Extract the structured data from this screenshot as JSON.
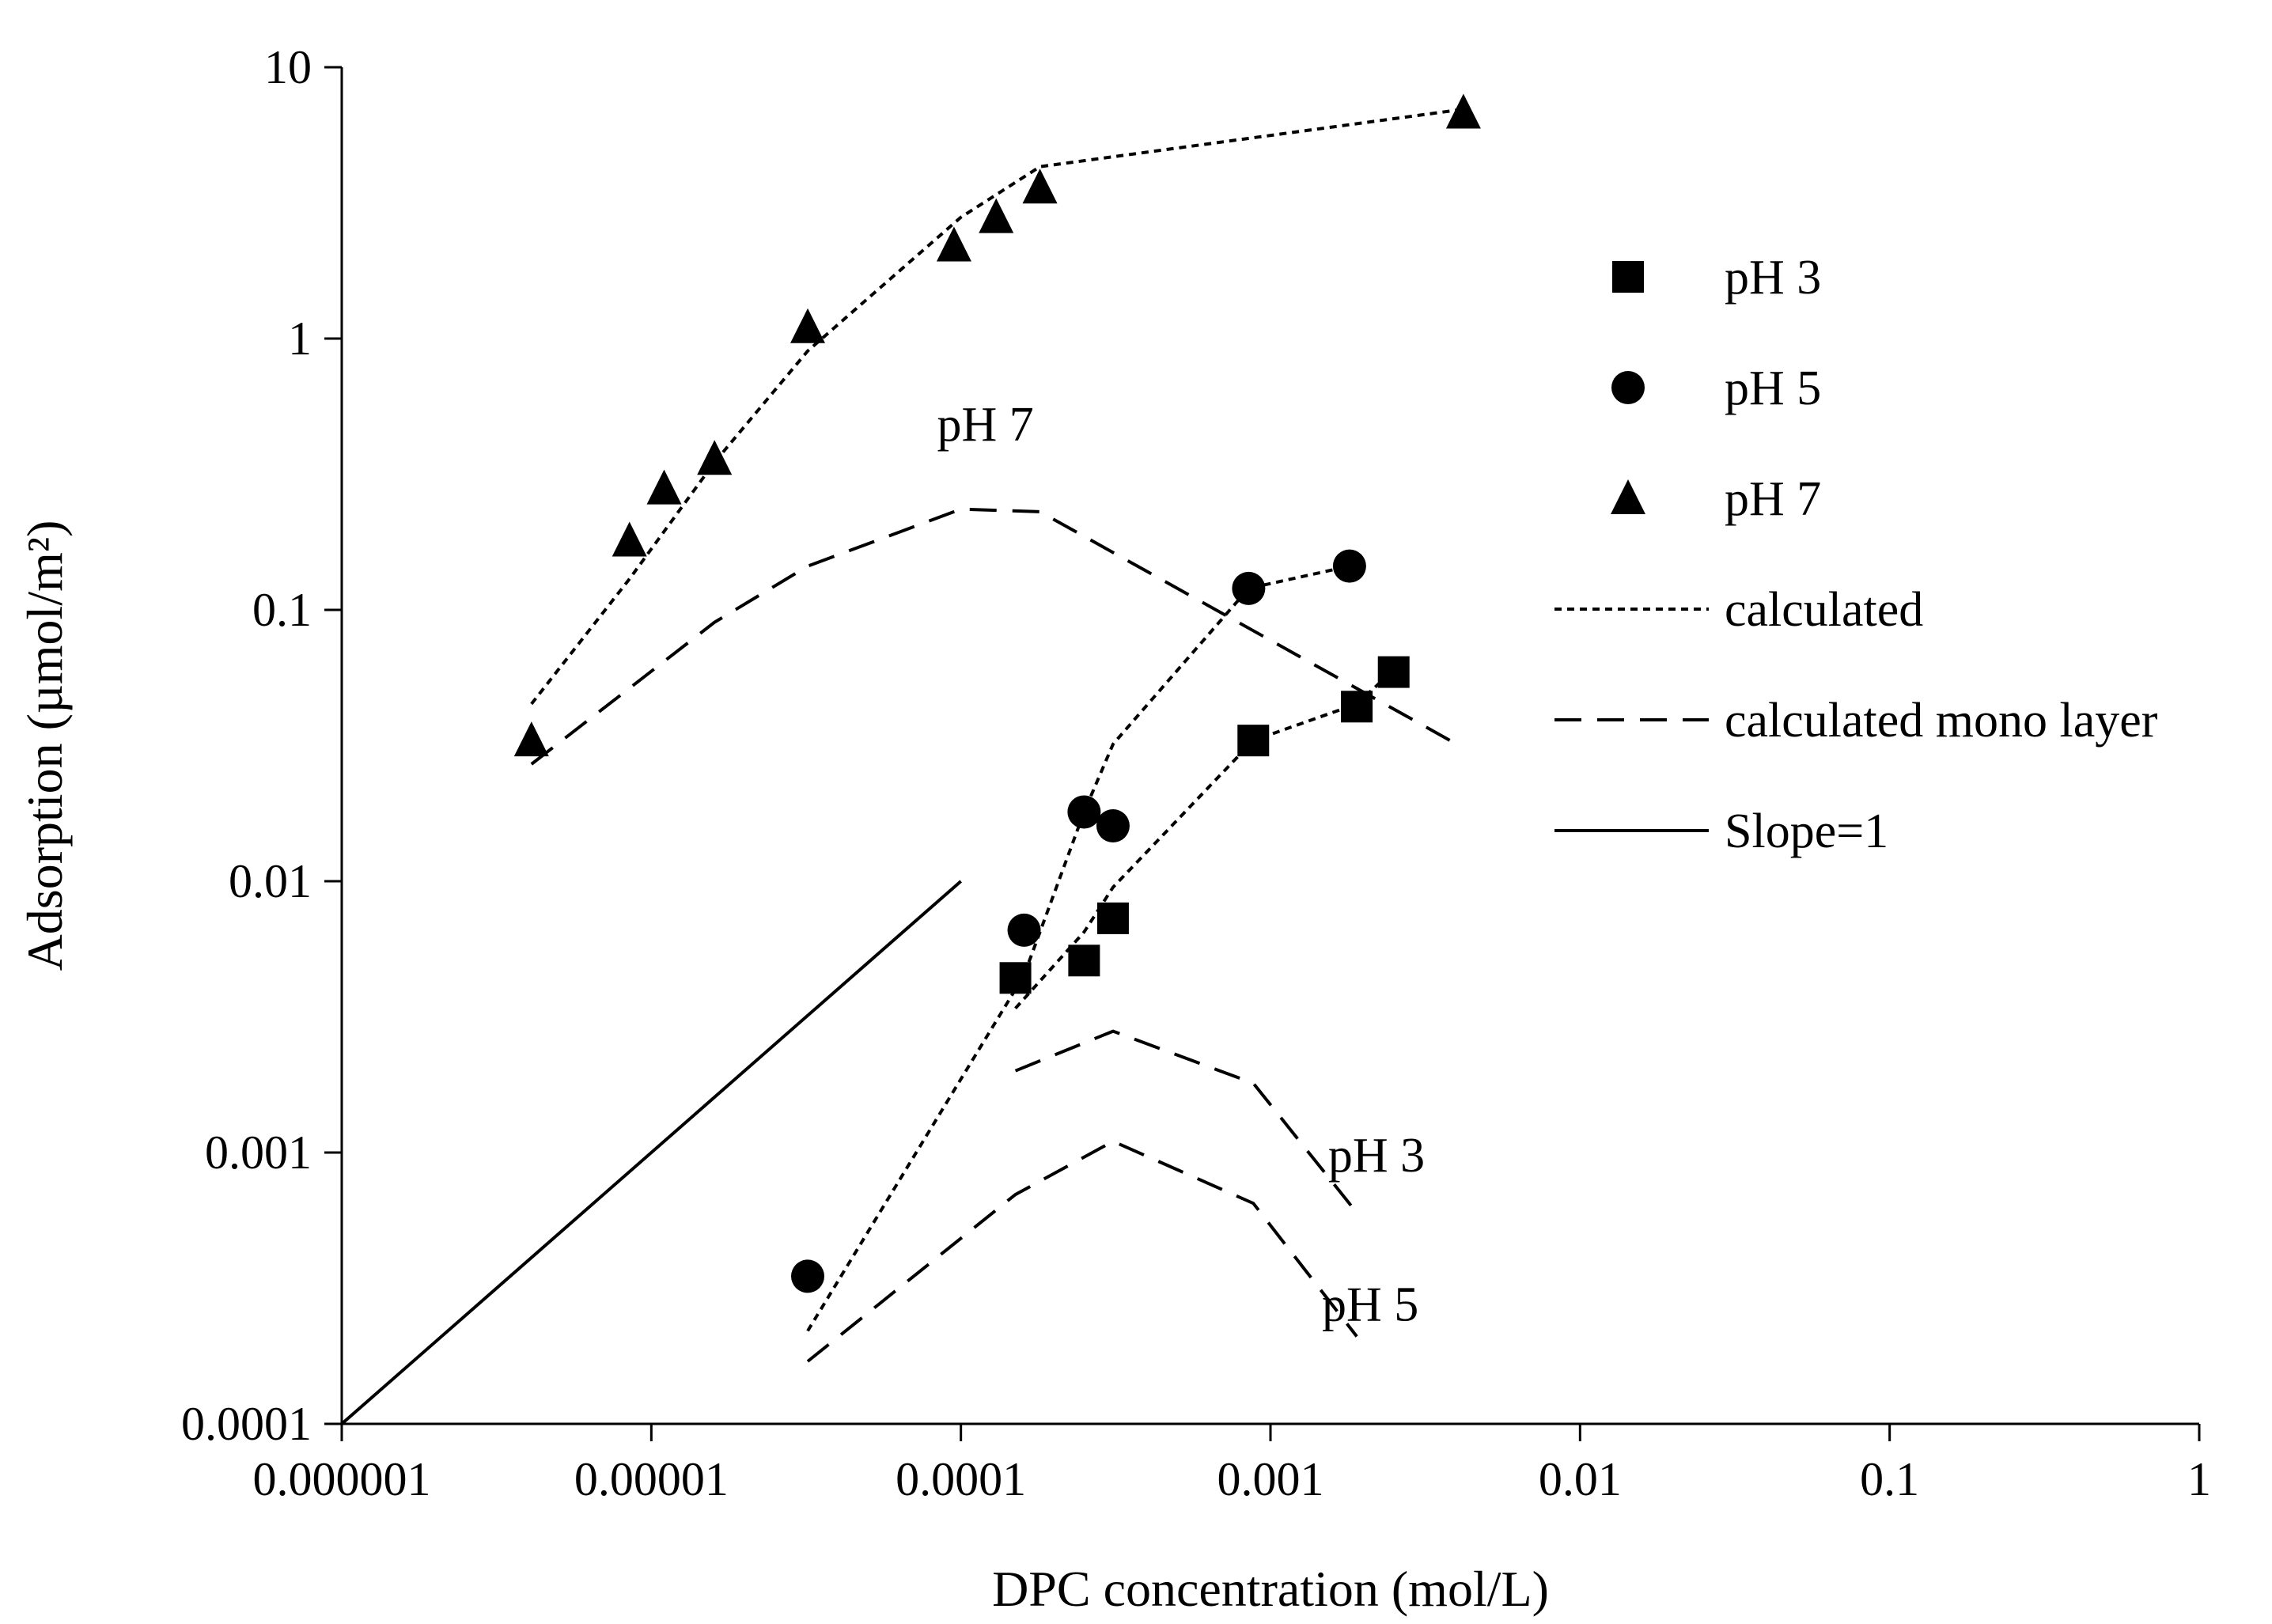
{
  "chart_data": {
    "type": "scatter",
    "xlabel": "DPC concentration (mol/L)",
    "ylabel": "Adsorption (µmol/m²)",
    "xscale": "log",
    "yscale": "log",
    "xlim": [
      1e-06,
      1
    ],
    "ylim": [
      0.0001,
      10
    ],
    "x_tick_values": [
      1e-06,
      1e-05,
      0.0001,
      0.001,
      0.01,
      0.1,
      1
    ],
    "x_tick_labels": [
      "0.000001",
      "0.00001",
      "0.0001",
      "0.001",
      "0.01",
      "0.1",
      "1"
    ],
    "y_tick_values": [
      0.0001,
      0.001,
      0.01,
      0.1,
      1,
      10
    ],
    "y_tick_labels": [
      "0.0001",
      "0.001",
      "0.01",
      "0.1",
      "1",
      "10"
    ],
    "grid": false,
    "legend_position": "right",
    "series": [
      {
        "name": "pH 3",
        "kind": "markers",
        "marker": "square",
        "color": "#000000",
        "x": [
          0.00015,
          0.00025,
          0.00031,
          0.00088,
          0.0019,
          0.0025
        ],
        "y": [
          0.0044,
          0.0051,
          0.0073,
          0.033,
          0.044,
          0.059
        ]
      },
      {
        "name": "pH 5",
        "kind": "markers",
        "marker": "circle",
        "color": "#000000",
        "x": [
          3.2e-05,
          0.00016,
          0.00025,
          0.00031,
          0.00085,
          0.0018
        ],
        "y": [
          0.00035,
          0.0066,
          0.018,
          0.016,
          0.12,
          0.145
        ]
      },
      {
        "name": "pH 7",
        "kind": "markers",
        "marker": "triangle",
        "color": "#000000",
        "x": [
          4.1e-06,
          8.5e-06,
          1.1e-05,
          1.6e-05,
          3.2e-05,
          9.5e-05,
          0.00013,
          0.00018,
          0.0042
        ],
        "y": [
          0.033,
          0.18,
          0.28,
          0.36,
          1.1,
          2.2,
          2.8,
          3.6,
          6.8
        ]
      },
      {
        "name": "calculated",
        "kind": "line",
        "dash": "short",
        "color": "#000000",
        "legend": true,
        "x": [
          4.1e-06,
          8.5e-06,
          1.6e-05,
          3.2e-05,
          0.0001,
          0.00018,
          0.0042
        ],
        "y": [
          0.045,
          0.13,
          0.35,
          0.9,
          2.8,
          4.3,
          7.0
        ]
      },
      {
        "name": "calculated mono layer",
        "kind": "line",
        "dash": "long",
        "color": "#000000",
        "legend": true,
        "x": [
          4.1e-06,
          1.6e-05,
          3.2e-05,
          0.0001,
          0.00018,
          0.0042
        ],
        "y": [
          0.027,
          0.09,
          0.145,
          0.235,
          0.23,
          0.031
        ]
      },
      {
        "name": "Slope=1",
        "kind": "line",
        "dash": "solid",
        "color": "#000000",
        "legend": true,
        "x": [
          1e-06,
          0.0001
        ],
        "y": [
          0.0001,
          0.01
        ]
      },
      {
        "name": "calculated pH 3",
        "kind": "line",
        "dash": "short",
        "color": "#000000",
        "legend": false,
        "x": [
          0.00015,
          0.00025,
          0.00031,
          0.00088,
          0.0019,
          0.0025
        ],
        "y": [
          0.0034,
          0.0065,
          0.0095,
          0.033,
          0.045,
          0.06
        ]
      },
      {
        "name": "calculated pH 5",
        "kind": "line",
        "dash": "short",
        "color": "#000000",
        "legend": false,
        "x": [
          3.2e-05,
          0.00016,
          0.00025,
          0.00031,
          0.00085,
          0.0018
        ],
        "y": [
          0.00022,
          0.0045,
          0.018,
          0.032,
          0.12,
          0.145
        ]
      },
      {
        "name": "calculated mono layer pH 3",
        "kind": "line",
        "dash": "long",
        "color": "#000000",
        "legend": false,
        "x": [
          0.00015,
          0.00031,
          0.00088,
          0.0019
        ],
        "y": [
          0.002,
          0.0028,
          0.0018,
          0.0006
        ]
      },
      {
        "name": "calculated mono layer pH 5",
        "kind": "line",
        "dash": "long",
        "color": "#000000",
        "legend": false,
        "x": [
          3.2e-05,
          0.00015,
          0.00031,
          0.00088,
          0.0019
        ],
        "y": [
          0.00017,
          0.0007,
          0.0011,
          0.00065,
          0.00021
        ]
      }
    ],
    "annotations": [
      {
        "text": "pH 7",
        "x": 0.00012,
        "y": 0.42
      },
      {
        "text": "pH 3",
        "x": 0.0022,
        "y": 0.00085
      },
      {
        "text": "pH 5",
        "x": 0.0021,
        "y": 0.00024
      }
    ]
  }
}
